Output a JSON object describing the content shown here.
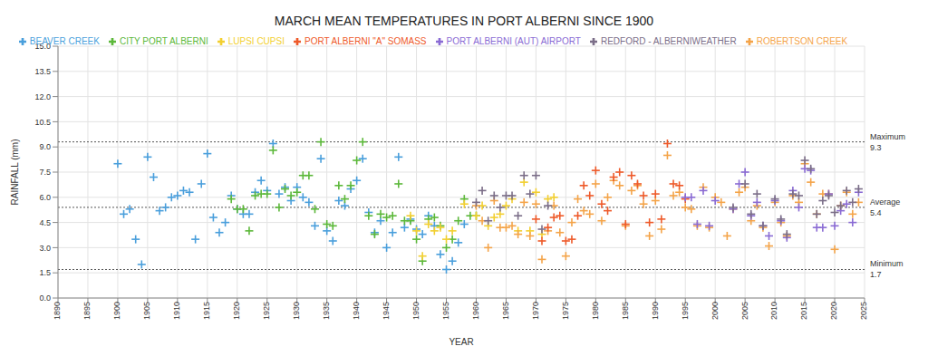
{
  "chart_data": {
    "type": "scatter",
    "title": "MARCH MEAN TEMPERATURES IN PORT ALBERNI SINCE 1900",
    "x_label": "YEAR",
    "y_label": "RAINFALL (mm)",
    "xlim": [
      1890,
      2025
    ],
    "xticks": [
      1890,
      1895,
      1900,
      1905,
      1910,
      1915,
      1920,
      1925,
      1930,
      1935,
      1940,
      1945,
      1950,
      1955,
      1960,
      1965,
      1970,
      1975,
      1980,
      1985,
      1990,
      1995,
      2000,
      2005,
      2010,
      2015,
      2020,
      2025
    ],
    "ylim": [
      0,
      15
    ],
    "yticks": [
      {
        "value": 0,
        "label": "0.0"
      },
      1.5,
      {
        "value": 3,
        "label": "3.0"
      },
      4.5,
      {
        "value": 6,
        "label": "6.0"
      },
      7.5,
      {
        "value": 9,
        "label": "9.0"
      },
      10.5,
      {
        "value": 12,
        "label": "12.0"
      },
      13.5,
      {
        "value": 15,
        "label": "15.0"
      }
    ],
    "grid": true,
    "legend": "top",
    "marker": "plus",
    "annotations": [
      {
        "label": "Maximum",
        "value": 9.3
      },
      {
        "label": "Average",
        "value": 5.4
      },
      {
        "label": "Minimum",
        "value": 1.7
      }
    ],
    "series": [
      {
        "name": "BEAVER CREEK",
        "color": "#4a9fdc",
        "x": [
          1900,
          1901,
          1902,
          1903,
          1904,
          1905,
          1906,
          1907,
          1908,
          1909,
          1910,
          1911,
          1912,
          1913,
          1914,
          1915,
          1916,
          1917,
          1918,
          1919,
          1920,
          1921,
          1922,
          1923,
          1924,
          1925,
          1926,
          1927,
          1928,
          1929,
          1930,
          1931,
          1932,
          1933,
          1934,
          1935,
          1936,
          1937,
          1938,
          1939,
          1940,
          1941,
          1942,
          1943,
          1944,
          1945,
          1946,
          1947,
          1948,
          1949,
          1950,
          1951,
          1952,
          1953,
          1954,
          1955,
          1956,
          1957,
          1958
        ],
        "values": [
          8.0,
          5.0,
          5.3,
          3.5,
          2.0,
          8.4,
          7.2,
          5.2,
          5.4,
          6.0,
          6.1,
          6.4,
          6.3,
          3.5,
          6.8,
          8.6,
          4.8,
          3.9,
          4.5,
          6.1,
          5.3,
          5.0,
          5.0,
          6.3,
          7.0,
          6.4,
          9.2,
          6.2,
          6.6,
          5.8,
          6.6,
          6.0,
          5.7,
          4.3,
          8.3,
          4.0,
          3.4,
          5.8,
          5.5,
          6.5,
          7.0,
          8.3,
          5.1,
          3.9,
          4.6,
          3.0,
          3.9,
          8.4,
          4.2,
          4.7,
          4.1,
          3.8,
          4.9,
          4.3,
          2.6,
          1.7,
          2.2,
          3.3,
          4.4
        ]
      },
      {
        "name": "CITY PORT ALBERNI",
        "color": "#5cb83a",
        "x": [
          1919,
          1920,
          1921,
          1922,
          1923,
          1924,
          1925,
          1926,
          1927,
          1928,
          1929,
          1930,
          1931,
          1932,
          1933,
          1934,
          1935,
          1936,
          1937,
          1938,
          1939,
          1940,
          1941,
          1942,
          1943,
          1944,
          1945,
          1946,
          1947,
          1948,
          1949,
          1950,
          1951,
          1952,
          1953,
          1954,
          1955,
          1956,
          1957,
          1958,
          1959,
          1960
        ],
        "values": [
          5.9,
          5.3,
          5.3,
          4.0,
          6.1,
          6.2,
          6.2,
          8.8,
          5.4,
          6.5,
          6.1,
          6.3,
          7.3,
          7.3,
          5.3,
          9.3,
          4.4,
          4.3,
          6.7,
          5.9,
          6.7,
          8.2,
          9.3,
          4.9,
          3.8,
          5.0,
          4.8,
          4.9,
          6.8,
          4.6,
          4.6,
          3.5,
          2.2,
          4.7,
          4.8,
          4.3,
          3.0,
          3.5,
          4.6,
          5.9,
          4.9,
          4.9
        ]
      },
      {
        "name": "LUPSI CUPSI",
        "color": "#f2cf30",
        "x": [
          1949,
          1950,
          1951,
          1952,
          1953,
          1954,
          1955,
          1956,
          1958,
          1960,
          1961,
          1962,
          1963,
          1964,
          1965,
          1966,
          1967,
          1968,
          1969,
          1970,
          1971,
          1972,
          1973
        ],
        "values": [
          4.9,
          4.0,
          2.5,
          4.4,
          4.0,
          4.2,
          3.5,
          4.0,
          5.6,
          4.9,
          5.5,
          4.3,
          4.8,
          5.0,
          5.5,
          5.9,
          4.0,
          6.9,
          4.0,
          6.3,
          3.8,
          5.9,
          6.0
        ]
      },
      {
        "name": "ROBERTSON CREEK",
        "color": "#f4a449",
        "x": [
          1960,
          1961,
          1962,
          1963,
          1964,
          1965,
          1966,
          1967,
          1968,
          1969,
          1970,
          1971,
          1972,
          1973,
          1974,
          1975,
          1976,
          1977,
          1978,
          1979,
          1980,
          1981,
          1982,
          1983,
          1984,
          1985,
          1986,
          1987,
          1988,
          1989,
          1990,
          1991,
          1992,
          1993,
          1994,
          1995,
          1996,
          1997,
          1998,
          1999,
          2000,
          2001,
          2002,
          2003,
          2004,
          2005,
          2006,
          2007,
          2008,
          2009,
          2010,
          2011,
          2012,
          2013,
          2014,
          2015,
          2016,
          2017,
          2018,
          2019,
          2020,
          2021,
          2022,
          2023,
          2024
        ],
        "values": [
          5.5,
          4.6,
          3.0,
          5.8,
          4.2,
          4.2,
          4.3,
          3.8,
          5.7,
          3.7,
          5.6,
          2.3,
          4.0,
          5.5,
          3.9,
          2.5,
          4.5,
          5.9,
          5.2,
          5.0,
          6.8,
          4.6,
          6.0,
          7.0,
          6.7,
          4.3,
          6.4,
          6.7,
          5.6,
          3.7,
          5.8,
          4.1,
          8.5,
          6.1,
          6.3,
          5.4,
          5.3,
          4.3,
          6.6,
          4.2,
          6.0,
          5.7,
          3.7,
          5.3,
          6.3,
          6.6,
          4.6,
          5.5,
          4.2,
          3.1,
          5.7,
          4.5,
          3.7,
          6.1,
          5.7,
          8.0,
          6.9,
          5.0,
          6.2,
          6.2,
          2.9,
          5.5,
          6.3,
          5.0,
          5.7
        ]
      },
      {
        "name": "PORT ALBERNI \"A\" SOMASS",
        "color": "#ee5a2a",
        "x": [
          1970,
          1971,
          1972,
          1973,
          1974,
          1975,
          1976,
          1977,
          1978,
          1979,
          1980,
          1981,
          1982,
          1983,
          1984,
          1985,
          1986,
          1987,
          1988,
          1989,
          1990,
          1991,
          1992,
          1993,
          1994,
          1995
        ],
        "values": [
          4.7,
          3.4,
          4.2,
          4.8,
          4.9,
          3.4,
          3.5,
          4.9,
          6.7,
          6.1,
          7.6,
          5.6,
          5.2,
          7.2,
          7.5,
          4.4,
          7.3,
          6.8,
          6.1,
          4.5,
          6.2,
          4.7,
          9.2,
          6.8,
          6.7,
          5.9
        ]
      },
      {
        "name": "PORT ALBERNI (AUT) AIRPORT",
        "color": "#8a6bd4",
        "x": [
          1995,
          1996,
          1997,
          1998,
          1999,
          2000,
          2003,
          2004,
          2005,
          2006,
          2007,
          2008,
          2009,
          2010,
          2011,
          2012,
          2013,
          2014,
          2015,
          2016,
          2017,
          2018,
          2019,
          2020,
          2021,
          2022,
          2023,
          2024
        ],
        "values": [
          6.0,
          6.0,
          4.4,
          6.4,
          4.3,
          5.8,
          5.3,
          6.8,
          7.5,
          4.9,
          5.7,
          4.3,
          3.7,
          5.8,
          4.6,
          3.6,
          6.4,
          5.4,
          7.7,
          7.6,
          4.2,
          4.2,
          6.2,
          4.3,
          5.2,
          5.6,
          4.5,
          6.3
        ]
      },
      {
        "name": "REDFORD - ALBERNIWEATHER",
        "color": "#7b6e88",
        "x": [
          1960,
          1961,
          1962,
          1963,
          1964,
          1965,
          1966,
          1967,
          1968,
          1969,
          1970,
          1971,
          1972,
          2003,
          2005,
          2006,
          2007,
          2008,
          2010,
          2011,
          2012,
          2013,
          2014,
          2015,
          2016,
          2017,
          2018,
          2019,
          2020,
          2021,
          2022,
          2023,
          2024
        ],
        "values": [
          5.7,
          6.4,
          4.6,
          6.1,
          5.4,
          6.1,
          6.1,
          4.9,
          7.3,
          6.2,
          7.3,
          4.1,
          5.5,
          5.4,
          6.8,
          5.0,
          6.2,
          4.3,
          5.9,
          4.7,
          3.8,
          6.2,
          6.1,
          8.2,
          7.7,
          5.0,
          5.8,
          6.1,
          5.1,
          5.5,
          6.4,
          5.7,
          6.5
        ]
      }
    ]
  }
}
